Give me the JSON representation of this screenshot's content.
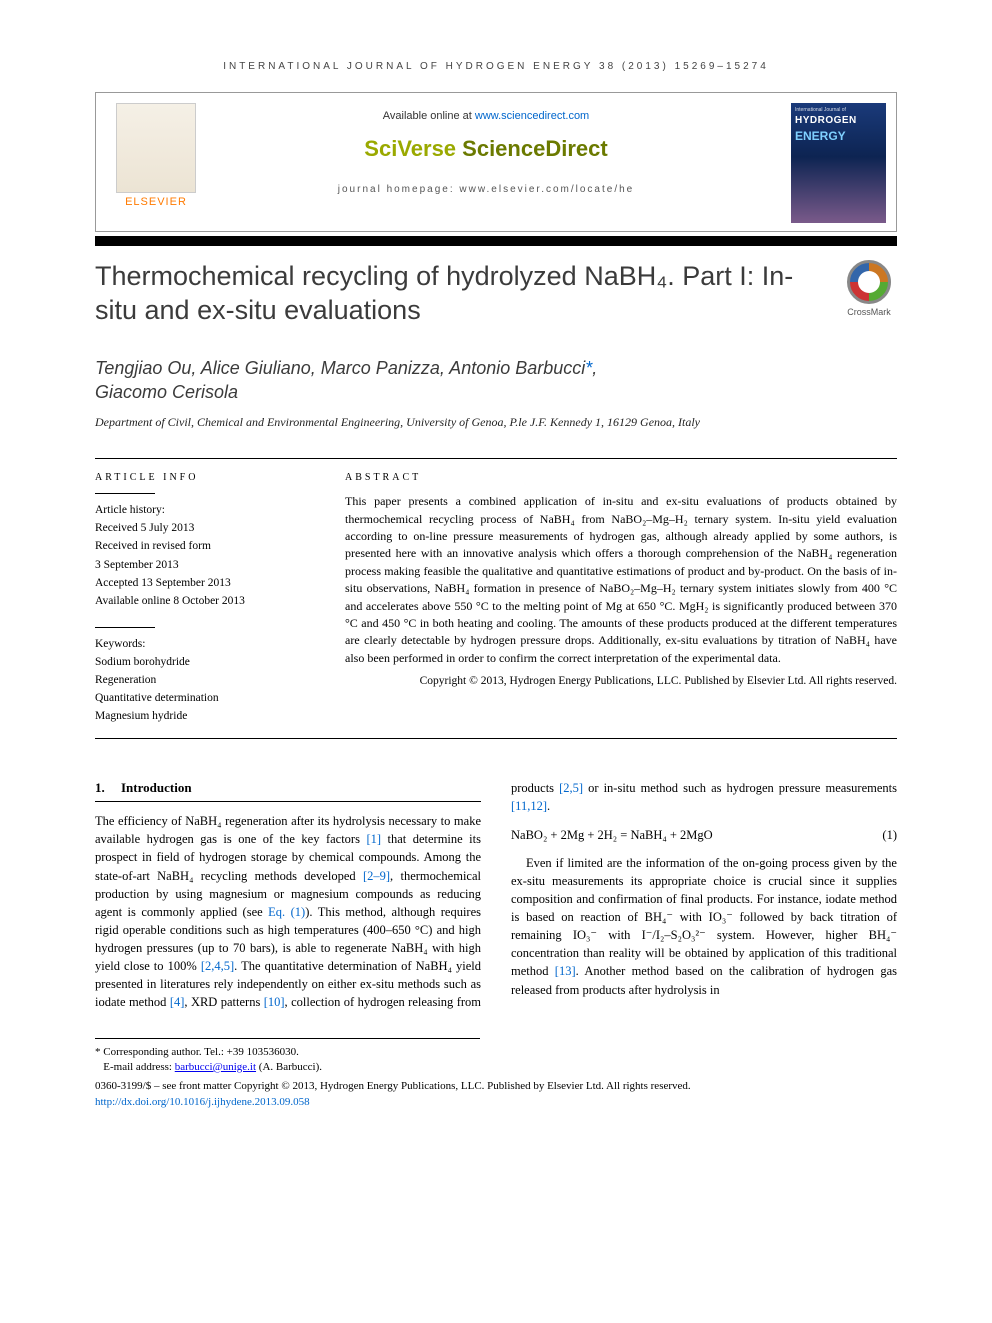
{
  "colors": {
    "link": "#0066cc",
    "elsevier_orange": "#ff7a00",
    "sciverse_green": "#9aa900",
    "sd_green": "#6b7a00",
    "cover_top": "#1a3a7a",
    "cover_bottom": "#7a5a8a",
    "text": "#000000",
    "title_grey": "#3b3b3b"
  },
  "running_head": "INTERNATIONAL JOURNAL OF HYDROGEN ENERGY 38 (2013) 15269–15274",
  "header": {
    "available_prefix": "Available online at ",
    "available_link": "www.sciencedirect.com",
    "sciverse": "SciVerse",
    "sciencedirect": " ScienceDirect",
    "homepage_label": "journal homepage: ",
    "homepage_url": "www.elsevier.com/locate/he",
    "elsevier_label": "ELSEVIER",
    "cover_journal": "International Journal of",
    "cover_h": "HYDROGEN",
    "cover_e": "ENERGY"
  },
  "crossmark_label": "CrossMark",
  "title": "Thermochemical recycling of hydrolyzed NaBH₄. Part I: In-situ and ex-situ evaluations",
  "authors_html": "Tengjiao Ou, Alice Giuliano, Marco Panizza, Antonio Barbucci",
  "corr_mark": "*",
  "author_last": "Giacomo Cerisola",
  "affiliation": "Department of Civil, Chemical and Environmental Engineering, University of Genoa, P.le J.F. Kennedy 1, 16129 Genoa, Italy",
  "article_info": {
    "heading": "ARTICLE INFO",
    "history_label": "Article history:",
    "received": "Received 5 July 2013",
    "revised_l1": "Received in revised form",
    "revised_l2": "3 September 2013",
    "accepted": "Accepted 13 September 2013",
    "online": "Available online 8 October 2013",
    "keywords_label": "Keywords:",
    "keywords": [
      "Sodium borohydride",
      "Regeneration",
      "Quantitative determination",
      "Magnesium hydride"
    ]
  },
  "abstract": {
    "heading": "ABSTRACT",
    "text": "This paper presents a combined application of in-situ and ex-situ evaluations of products obtained by thermochemical recycling process of NaBH₄ from NaBO₂–Mg–H₂ ternary system. In-situ yield evaluation according to on-line pressure measurements of hydrogen gas, although already applied by some authors, is presented here with an innovative analysis which offers a thorough comprehension of the NaBH₄ regeneration process making feasible the qualitative and quantitative estimations of product and by-product. On the basis of in-situ observations, NaBH₄ formation in presence of NaBO₂–Mg–H₂ ternary system initiates slowly from 400 °C and accelerates above 550 °C to the melting point of Mg at 650 °C. MgH₂ is significantly produced between 370 °C and 450 °C in both heating and cooling. The amounts of these products produced at the different temperatures are clearly detectable by hydrogen pressure drops. Additionally, ex-situ evaluations by titration of NaBH₄ have also been performed in order to confirm the correct interpretation of the experimental data.",
    "copyright": "Copyright © 2013, Hydrogen Energy Publications, LLC. Published by Elsevier Ltd. All rights reserved."
  },
  "body": {
    "sec_no": "1.",
    "sec_title": "Introduction",
    "p1a": "The efficiency of NaBH₄ regeneration after its hydrolysis necessary to make available hydrogen gas is one of the key factors ",
    "ref1": "[1]",
    "p1b": " that determine its prospect in field of hydrogen storage by chemical compounds. Among the state-of-art NaBH₄ recycling methods developed ",
    "ref2_9": "[2–9]",
    "p1c": ", thermochemical production by using magnesium or magnesium compounds as reducing agent is commonly applied (see ",
    "eq1ref": "Eq. (1)",
    "p1d": "). This method, although requires rigid operable conditions such as high temperatures (400–650 °C) and high hydrogen pressures (up to 70 bars), is able to regenerate NaBH₄ with high yield close to 100% ",
    "ref245": "[2,4,5]",
    "p1e": ". The quantitative determination of NaBH₄ yield presented in literatures rely independently on either ex-",
    "p2a": "situ methods such as iodate method ",
    "ref4": "[4]",
    "p2b": ", XRD patterns ",
    "ref10": "[10]",
    "p2c": ", collection of hydrogen releasing from products ",
    "ref25": "[2,5]",
    "p2d": " or in-situ method such as hydrogen pressure measurements ",
    "ref1112": "[11,12]",
    "p2e": ".",
    "equation": "NaBO₂ + 2Mg + 2H₂ = NaBH₄ + 2MgO",
    "equation_no": "(1)",
    "p3a": "Even if limited are the information of the on-going process given by the ex-situ measurements its appropriate choice is crucial since it supplies composition and confirmation of final products. For instance, iodate method is based on reaction of BH₄⁻ with IO₃⁻ followed by back titration of remaining IO₃⁻ with I⁻/I₂–S₂O₃²⁻ system. However, higher BH₄⁻ concentration than reality will be obtained by application of this traditional method ",
    "ref13": "[13]",
    "p3b": ". Another method based on the calibration of hydrogen gas released from products after hydrolysis in"
  },
  "footnotes": {
    "corr": "* Corresponding author. Tel.: +39 103536030.",
    "email_label": "E-mail address: ",
    "email": "barbucci@unige.it",
    "email_owner": " (A. Barbucci).",
    "issn_line": "0360-3199/$ – see front matter Copyright © 2013, Hydrogen Energy Publications, LLC. Published by Elsevier Ltd. All rights reserved.",
    "doi": "http://dx.doi.org/10.1016/j.ijhydene.2013.09.058"
  }
}
